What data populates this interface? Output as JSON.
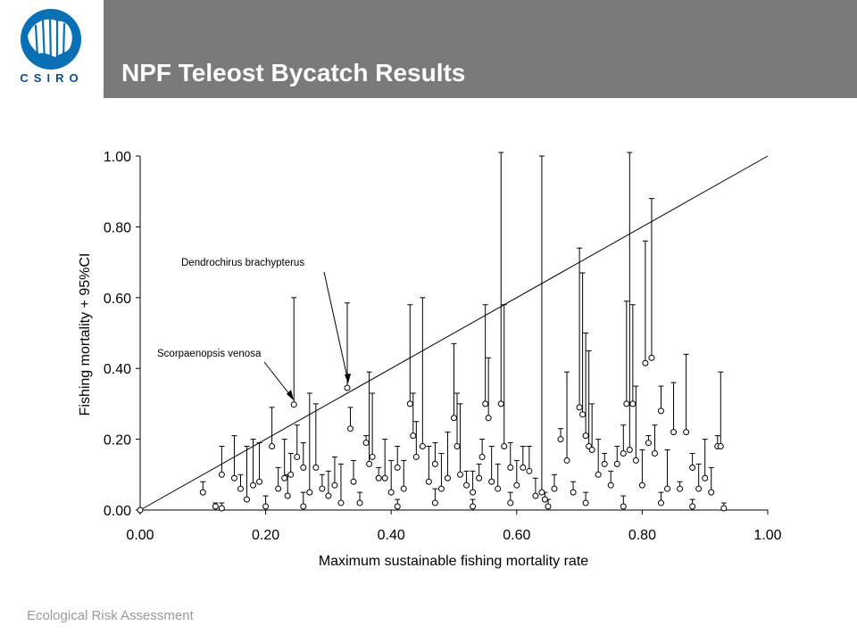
{
  "header": {
    "title": "NPF Teleost Bycatch Results",
    "logo_text": "CSIRO"
  },
  "footer": {
    "text": "Ecological Risk Assessment"
  },
  "colors": {
    "title_bar": "#7a7a7a",
    "logo_blue": "#0a4d8c"
  },
  "chart_data": {
    "type": "scatter",
    "xlabel": "Maximum sustainable fishing mortality rate",
    "ylabel": "Fishing mortality + 95%CI",
    "xlim": [
      0,
      1
    ],
    "ylim": [
      0,
      1
    ],
    "x_ticks": [
      "0.00",
      "0.20",
      "0.40",
      "0.60",
      "0.80",
      "1.00"
    ],
    "y_ticks": [
      "0.00",
      "0.20",
      "0.40",
      "0.60",
      "0.80",
      "1.00"
    ],
    "reference_line": {
      "from": [
        0,
        0
      ],
      "to": [
        1,
        1
      ]
    },
    "annotations": [
      {
        "text": "Dendrochirus brachypterus",
        "point": [
          0.33,
          0.345
        ]
      },
      {
        "text": "Scorpaenopsis venosa",
        "point": [
          0.245,
          0.298
        ]
      }
    ],
    "points": [
      [
        0.1,
        0.05,
        0.08
      ],
      [
        0.12,
        0.01,
        0.02
      ],
      [
        0.13,
        0.1,
        0.18
      ],
      [
        0.15,
        0.09,
        0.21
      ],
      [
        0.16,
        0.06,
        0.1
      ],
      [
        0.17,
        0.03,
        0.18
      ],
      [
        0.18,
        0.07,
        0.2
      ],
      [
        0.19,
        0.08,
        0.19
      ],
      [
        0.21,
        0.18,
        0.29
      ],
      [
        0.22,
        0.06,
        0.12
      ],
      [
        0.23,
        0.09,
        0.2
      ],
      [
        0.235,
        0.04,
        0.1
      ],
      [
        0.24,
        0.1,
        0.16
      ],
      [
        0.245,
        0.298,
        0.6
      ],
      [
        0.25,
        0.15,
        0.24
      ],
      [
        0.26,
        0.12,
        0.19
      ],
      [
        0.27,
        0.05,
        0.33
      ],
      [
        0.28,
        0.12,
        0.3
      ],
      [
        0.29,
        0.06,
        0.1
      ],
      [
        0.3,
        0.04,
        0.11
      ],
      [
        0.31,
        0.07,
        0.15
      ],
      [
        0.32,
        0.02,
        0.13
      ],
      [
        0.33,
        0.345,
        0.585
      ],
      [
        0.335,
        0.23,
        0.29
      ],
      [
        0.34,
        0.08,
        0.14
      ],
      [
        0.36,
        0.19,
        0.21
      ],
      [
        0.365,
        0.13,
        0.39
      ],
      [
        0.37,
        0.15,
        0.33
      ],
      [
        0.38,
        0.09,
        0.12
      ],
      [
        0.39,
        0.09,
        0.2
      ],
      [
        0.4,
        0.05,
        0.14
      ],
      [
        0.41,
        0.12,
        0.18
      ],
      [
        0.42,
        0.06,
        0.14
      ],
      [
        0.43,
        0.3,
        0.58
      ],
      [
        0.435,
        0.21,
        0.33
      ],
      [
        0.44,
        0.15,
        0.25
      ],
      [
        0.45,
        0.18,
        0.6
      ],
      [
        0.46,
        0.08,
        0.18
      ],
      [
        0.47,
        0.13,
        0.19
      ],
      [
        0.48,
        0.06,
        0.16
      ],
      [
        0.49,
        0.09,
        0.22
      ],
      [
        0.5,
        0.26,
        0.47
      ],
      [
        0.505,
        0.18,
        0.33
      ],
      [
        0.51,
        0.1,
        0.3
      ],
      [
        0.52,
        0.07,
        0.11
      ],
      [
        0.53,
        0.05,
        0.11
      ],
      [
        0.54,
        0.09,
        0.13
      ],
      [
        0.545,
        0.15,
        0.2
      ],
      [
        0.55,
        0.3,
        0.58
      ],
      [
        0.555,
        0.26,
        0.43
      ],
      [
        0.56,
        0.08,
        0.18
      ],
      [
        0.57,
        0.06,
        0.13
      ],
      [
        0.575,
        0.3,
        1.01
      ],
      [
        0.58,
        0.18,
        0.58
      ],
      [
        0.59,
        0.12,
        0.19
      ],
      [
        0.6,
        0.07,
        0.14
      ],
      [
        0.61,
        0.12,
        0.18
      ],
      [
        0.62,
        0.11,
        0.18
      ],
      [
        0.63,
        0.04,
        0.09
      ],
      [
        0.64,
        0.05,
        1.0
      ],
      [
        0.645,
        0.03,
        0.05
      ],
      [
        0.66,
        0.06,
        0.1
      ],
      [
        0.67,
        0.2,
        0.23
      ],
      [
        0.68,
        0.14,
        0.39
      ],
      [
        0.69,
        0.05,
        0.08
      ],
      [
        0.7,
        0.29,
        0.74
      ],
      [
        0.705,
        0.27,
        0.67
      ],
      [
        0.71,
        0.21,
        0.5
      ],
      [
        0.715,
        0.18,
        0.45
      ],
      [
        0.72,
        0.17,
        0.3
      ],
      [
        0.73,
        0.1,
        0.2
      ],
      [
        0.74,
        0.13,
        0.16
      ],
      [
        0.75,
        0.07,
        0.11
      ],
      [
        0.76,
        0.13,
        0.18
      ],
      [
        0.77,
        0.16,
        0.24
      ],
      [
        0.775,
        0.3,
        0.59
      ],
      [
        0.78,
        0.17,
        1.01
      ],
      [
        0.785,
        0.3,
        0.58
      ],
      [
        0.79,
        0.14,
        0.35
      ],
      [
        0.8,
        0.07,
        0.17
      ],
      [
        0.805,
        0.415,
        0.76
      ],
      [
        0.81,
        0.19,
        0.21
      ],
      [
        0.815,
        0.43,
        0.88
      ],
      [
        0.82,
        0.16,
        0.24
      ],
      [
        0.83,
        0.28,
        0.35
      ],
      [
        0.84,
        0.06,
        0.17
      ],
      [
        0.85,
        0.22,
        0.36
      ],
      [
        0.86,
        0.06,
        0.08
      ],
      [
        0.87,
        0.22,
        0.44
      ],
      [
        0.88,
        0.12,
        0.16
      ],
      [
        0.89,
        0.06,
        0.13
      ],
      [
        0.9,
        0.09,
        0.2
      ],
      [
        0.91,
        0.05,
        0.12
      ],
      [
        0.92,
        0.18,
        0.21
      ],
      [
        0.925,
        0.18,
        0.39
      ],
      [
        0.13,
        0.005,
        0.02
      ],
      [
        0.2,
        0.01,
        0.04
      ],
      [
        0.26,
        0.01,
        0.05
      ],
      [
        0.35,
        0.02,
        0.05
      ],
      [
        0.41,
        0.01,
        0.03
      ],
      [
        0.47,
        0.02,
        0.06
      ],
      [
        0.53,
        0.01,
        0.03
      ],
      [
        0.59,
        0.02,
        0.05
      ],
      [
        0.65,
        0.01,
        0.03
      ],
      [
        0.71,
        0.02,
        0.05
      ],
      [
        0.77,
        0.01,
        0.04
      ],
      [
        0.83,
        0.02,
        0.05
      ],
      [
        0.88,
        0.01,
        0.03
      ],
      [
        0.93,
        0.005,
        0.02
      ]
    ]
  }
}
